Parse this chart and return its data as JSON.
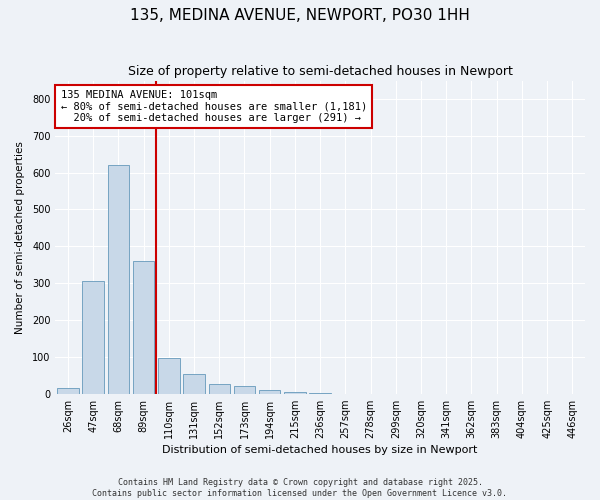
{
  "title_line1": "135, MEDINA AVENUE, NEWPORT, PO30 1HH",
  "title_line2": "Size of property relative to semi-detached houses in Newport",
  "xlabel": "Distribution of semi-detached houses by size in Newport",
  "ylabel": "Number of semi-detached properties",
  "categories": [
    "26sqm",
    "47sqm",
    "68sqm",
    "89sqm",
    "110sqm",
    "131sqm",
    "152sqm",
    "173sqm",
    "194sqm",
    "215sqm",
    "236sqm",
    "257sqm",
    "278sqm",
    "299sqm",
    "320sqm",
    "341sqm",
    "362sqm",
    "383sqm",
    "404sqm",
    "425sqm",
    "446sqm"
  ],
  "values": [
    15,
    305,
    620,
    360,
    97,
    53,
    25,
    22,
    10,
    5,
    1,
    0,
    0,
    0,
    0,
    0,
    0,
    0,
    0,
    0,
    0
  ],
  "bar_color": "#c8d8e8",
  "bar_edge_color": "#6699bb",
  "vline_color": "#cc0000",
  "vline_x_index": 3.5,
  "annotation_text": "135 MEDINA AVENUE: 101sqm\n← 80% of semi-detached houses are smaller (1,181)\n  20% of semi-detached houses are larger (291) →",
  "annotation_box_facecolor": "#ffffff",
  "annotation_box_edgecolor": "#cc0000",
  "ylim": [
    0,
    850
  ],
  "yticks": [
    0,
    100,
    200,
    300,
    400,
    500,
    600,
    700,
    800
  ],
  "footer_line1": "Contains HM Land Registry data © Crown copyright and database right 2025.",
  "footer_line2": "Contains public sector information licensed under the Open Government Licence v3.0.",
  "background_color": "#eef2f7",
  "plot_bg_color": "#eef2f7",
  "grid_color": "#ffffff",
  "title_fontsize": 11,
  "subtitle_fontsize": 9,
  "xlabel_fontsize": 8,
  "ylabel_fontsize": 7.5,
  "tick_fontsize": 7,
  "annotation_fontsize": 7.5,
  "footer_fontsize": 6
}
